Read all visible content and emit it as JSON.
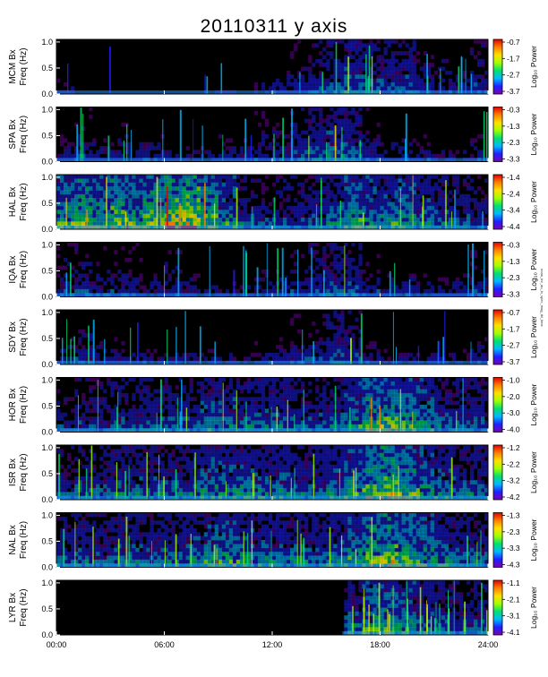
{
  "title": "20110311 y axis",
  "side_note": "noaa_tnr_au_in_spec_mag_tbl_time",
  "chart_data": {
    "type": "heatmap",
    "x_unit": "hours",
    "x_ticks": [
      0,
      6,
      12,
      18,
      24
    ],
    "x_tick_labels": [
      "00:00",
      "06:00",
      "12:00",
      "18:00",
      "24:00"
    ],
    "y_ticks": [
      0.0,
      0.5,
      1.0
    ],
    "y_tick_labels": [
      "0.0",
      "0.5",
      "1.0"
    ],
    "ylim": [
      0,
      1.05
    ],
    "freq_label": "Freq (Hz)",
    "colorbar_label": "Log₁₀ Power",
    "colormap": [
      "#7a00b0",
      "#2020ff",
      "#00b8ff",
      "#00e070",
      "#a0ff00",
      "#ffe000",
      "#ff8000",
      "#e00000"
    ],
    "panels": [
      {
        "station": "MCM Bx",
        "cbar": [
          "-0.7",
          "-1.7",
          "-2.7",
          "-3.7"
        ],
        "activity": [
          0.25,
          0.15,
          0.2,
          0.15,
          0.15,
          0.15,
          0.15,
          0.15,
          0.2,
          0.2,
          0.2,
          0.25,
          0.3,
          0.35,
          0.4,
          0.45,
          0.55,
          0.5,
          0.45,
          0.45,
          0.35,
          0.35,
          0.3,
          0.4
        ],
        "start": 0
      },
      {
        "station": "SPA Bx",
        "cbar": [
          "-0.3",
          "-1.3",
          "-2.3",
          "-3.3"
        ],
        "activity": [
          0.3,
          0.35,
          0.3,
          0.35,
          0.3,
          0.3,
          0.25,
          0.25,
          0.25,
          0.3,
          0.3,
          0.35,
          0.35,
          0.4,
          0.45,
          0.55,
          0.5,
          0.35,
          0.3,
          0.3,
          0.3,
          0.25,
          0.25,
          0.3
        ],
        "start": 0
      },
      {
        "station": "HAL Bx",
        "cbar": [
          "-1.4",
          "-2.4",
          "-3.4",
          "-4.4"
        ],
        "activity": [
          0.7,
          0.8,
          0.7,
          0.85,
          0.75,
          0.8,
          0.95,
          1.0,
          0.8,
          0.6,
          0.45,
          0.4,
          0.4,
          0.4,
          0.45,
          0.55,
          0.7,
          0.6,
          0.6,
          0.65,
          0.55,
          0.5,
          0.45,
          0.4
        ],
        "start": 0
      },
      {
        "station": "IQA Bx",
        "cbar": [
          "-0.3",
          "-1.3",
          "-2.3",
          "-3.3"
        ],
        "activity": [
          0.35,
          0.4,
          0.35,
          0.35,
          0.35,
          0.3,
          0.35,
          0.3,
          0.25,
          0.25,
          0.25,
          0.3,
          0.3,
          0.35,
          0.4,
          0.45,
          0.45,
          0.35,
          0.3,
          0.3,
          0.3,
          0.3,
          0.3,
          0.35
        ],
        "start": 0
      },
      {
        "station": "SDY Bx",
        "cbar": [
          "-0.7",
          "-1.7",
          "-2.7",
          "-3.7"
        ],
        "activity": [
          0.3,
          0.35,
          0.3,
          0.3,
          0.3,
          0.25,
          0.25,
          0.25,
          0.25,
          0.25,
          0.25,
          0.3,
          0.3,
          0.35,
          0.35,
          0.45,
          0.4,
          0.3,
          0.25,
          0.25,
          0.25,
          0.25,
          0.25,
          0.3
        ],
        "start": 0
      },
      {
        "station": "HOR Bx",
        "cbar": [
          "-1.0",
          "-2.0",
          "-3.0",
          "-4.0"
        ],
        "activity": [
          0.35,
          0.4,
          0.4,
          0.45,
          0.45,
          0.45,
          0.45,
          0.45,
          0.55,
          0.55,
          0.5,
          0.5,
          0.5,
          0.45,
          0.45,
          0.5,
          0.6,
          0.75,
          0.8,
          0.7,
          0.6,
          0.5,
          0.45,
          0.45
        ],
        "start": 0
      },
      {
        "station": "ISR Bx",
        "cbar": [
          "-1.2",
          "-2.2",
          "-3.2",
          "-4.2"
        ],
        "activity": [
          0.4,
          0.45,
          0.45,
          0.5,
          0.5,
          0.5,
          0.5,
          0.5,
          0.6,
          0.6,
          0.6,
          0.55,
          0.55,
          0.5,
          0.5,
          0.55,
          0.65,
          0.8,
          0.85,
          0.75,
          0.65,
          0.55,
          0.5,
          0.5
        ],
        "start": 0
      },
      {
        "station": "NAL Bx",
        "cbar": [
          "-1.3",
          "-2.3",
          "-3.3",
          "-4.3"
        ],
        "activity": [
          0.45,
          0.5,
          0.45,
          0.5,
          0.5,
          0.5,
          0.5,
          0.55,
          0.6,
          0.65,
          0.6,
          0.55,
          0.55,
          0.55,
          0.5,
          0.55,
          0.65,
          0.8,
          0.85,
          0.75,
          0.65,
          0.55,
          0.5,
          0.5
        ],
        "start": 0
      },
      {
        "station": "LYR Bx",
        "cbar": [
          "-1.1",
          "-2.1",
          "-3.1",
          "-4.1"
        ],
        "activity": [
          0,
          0,
          0,
          0,
          0,
          0,
          0,
          0,
          0,
          0,
          0,
          0,
          0,
          0,
          0,
          0,
          0.55,
          0.65,
          0.7,
          0.6,
          0.55,
          0.5,
          0.45,
          0.45
        ],
        "start": 15.9
      }
    ]
  }
}
